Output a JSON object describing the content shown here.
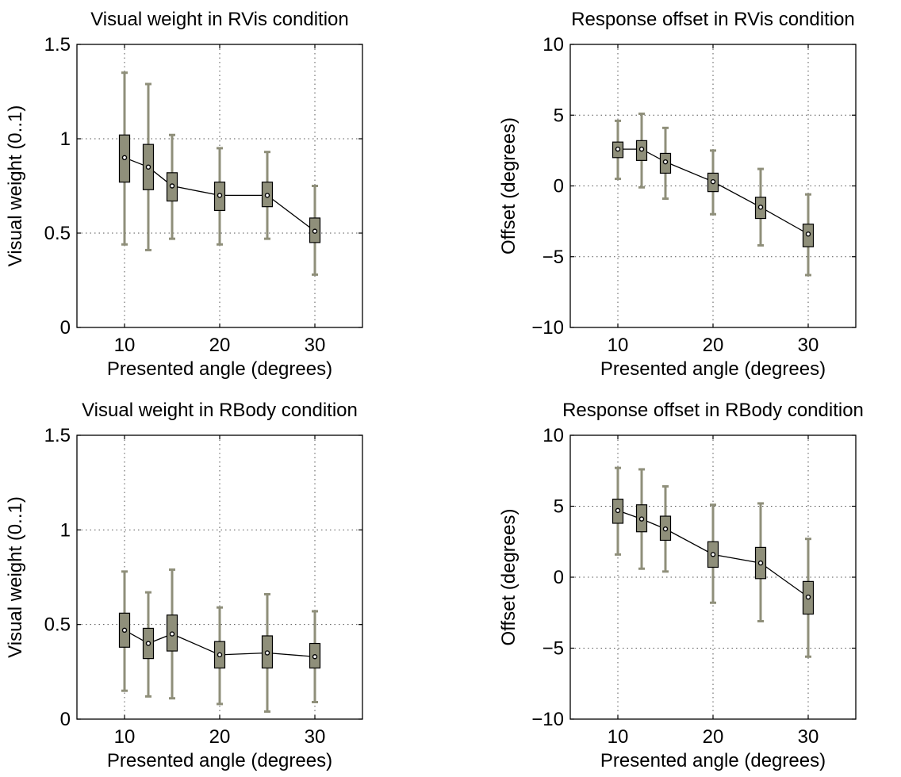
{
  "style": {
    "box_fill": "#8f8f7a",
    "whisker_color": "#8f8f7a",
    "line_color": "#000000",
    "median_marker_color": "#ffffff",
    "grid_color": "#555555"
  },
  "chart_data": [
    {
      "type": "box",
      "title": "Visual weight in RVis condition",
      "xlabel": "Presented angle (degrees)",
      "ylabel": "Visual weight (0..1)",
      "xlim": [
        5,
        35
      ],
      "ylim": [
        0,
        1.5
      ],
      "xticks": [
        "10",
        "20",
        "30"
      ],
      "xtick_values": [
        10,
        20,
        30
      ],
      "yticks": [
        "0",
        "0.5",
        "1",
        "1.5"
      ],
      "ytick_values": [
        0,
        0.5,
        1,
        1.5
      ],
      "grid": true,
      "x": [
        10,
        12.5,
        15,
        20,
        25,
        30
      ],
      "median": [
        0.9,
        0.85,
        0.75,
        0.7,
        0.7,
        0.51
      ],
      "q1": [
        0.77,
        0.73,
        0.67,
        0.62,
        0.64,
        0.45
      ],
      "q3": [
        1.02,
        0.97,
        0.82,
        0.77,
        0.77,
        0.58
      ],
      "whisker_low": [
        0.44,
        0.41,
        0.47,
        0.44,
        0.47,
        0.28
      ],
      "whisker_high": [
        1.35,
        1.29,
        1.02,
        0.95,
        0.93,
        0.75
      ]
    },
    {
      "type": "box",
      "title": "Response offset in RVis condition",
      "xlabel": "Presented angle (degrees)",
      "ylabel": "Offset (degrees)",
      "xlim": [
        5,
        35
      ],
      "ylim": [
        -10,
        10
      ],
      "xticks": [
        "10",
        "20",
        "30"
      ],
      "xtick_values": [
        10,
        20,
        30
      ],
      "yticks": [
        "−10",
        "−5",
        "0",
        "5",
        "10"
      ],
      "ytick_values": [
        -10,
        -5,
        0,
        5,
        10
      ],
      "grid": true,
      "x": [
        10,
        12.5,
        15,
        20,
        25,
        30
      ],
      "median": [
        2.6,
        2.6,
        1.7,
        0.3,
        -1.5,
        -3.4
      ],
      "q1": [
        2.0,
        1.8,
        0.9,
        -0.4,
        -2.3,
        -4.3
      ],
      "q3": [
        3.1,
        3.2,
        2.3,
        0.9,
        -0.8,
        -2.7
      ],
      "whisker_low": [
        0.5,
        -0.1,
        -0.9,
        -2.0,
        -4.2,
        -6.3
      ],
      "whisker_high": [
        4.6,
        5.1,
        4.1,
        2.5,
        1.2,
        -0.6
      ]
    },
    {
      "type": "box",
      "title": "Visual weight in RBody condition",
      "xlabel": "Presented angle (degrees)",
      "ylabel": "Visual weight (0..1)",
      "xlim": [
        5,
        35
      ],
      "ylim": [
        0,
        1.5
      ],
      "xticks": [
        "10",
        "20",
        "30"
      ],
      "xtick_values": [
        10,
        20,
        30
      ],
      "yticks": [
        "0",
        "0.5",
        "1",
        "1.5"
      ],
      "ytick_values": [
        0,
        0.5,
        1,
        1.5
      ],
      "grid": true,
      "x": [
        10,
        12.5,
        15,
        20,
        25,
        30
      ],
      "median": [
        0.47,
        0.4,
        0.45,
        0.34,
        0.35,
        0.33
      ],
      "q1": [
        0.38,
        0.32,
        0.36,
        0.27,
        0.27,
        0.27
      ],
      "q3": [
        0.56,
        0.48,
        0.55,
        0.41,
        0.44,
        0.4
      ],
      "whisker_low": [
        0.15,
        0.12,
        0.11,
        0.08,
        0.04,
        0.09
      ],
      "whisker_high": [
        0.78,
        0.67,
        0.79,
        0.59,
        0.66,
        0.57
      ]
    },
    {
      "type": "box",
      "title": "Response offset in RBody condition",
      "xlabel": "Presented angle (degrees)",
      "ylabel": "Offset (degrees)",
      "xlim": [
        5,
        35
      ],
      "ylim": [
        -10,
        10
      ],
      "xticks": [
        "10",
        "20",
        "30"
      ],
      "xtick_values": [
        10,
        20,
        30
      ],
      "yticks": [
        "−10",
        "−5",
        "0",
        "5",
        "10"
      ],
      "ytick_values": [
        -10,
        -5,
        0,
        5,
        10
      ],
      "grid": true,
      "x": [
        10,
        12.5,
        15,
        20,
        25,
        30
      ],
      "median": [
        4.7,
        4.1,
        3.4,
        1.6,
        1.0,
        -1.4
      ],
      "q1": [
        3.8,
        3.2,
        2.6,
        0.7,
        -0.1,
        -2.6
      ],
      "q3": [
        5.5,
        5.1,
        4.3,
        2.5,
        2.1,
        -0.3
      ],
      "whisker_low": [
        1.6,
        0.6,
        0.4,
        -1.8,
        -3.1,
        -5.6
      ],
      "whisker_high": [
        7.7,
        7.6,
        6.4,
        5.1,
        5.2,
        2.7
      ]
    }
  ]
}
